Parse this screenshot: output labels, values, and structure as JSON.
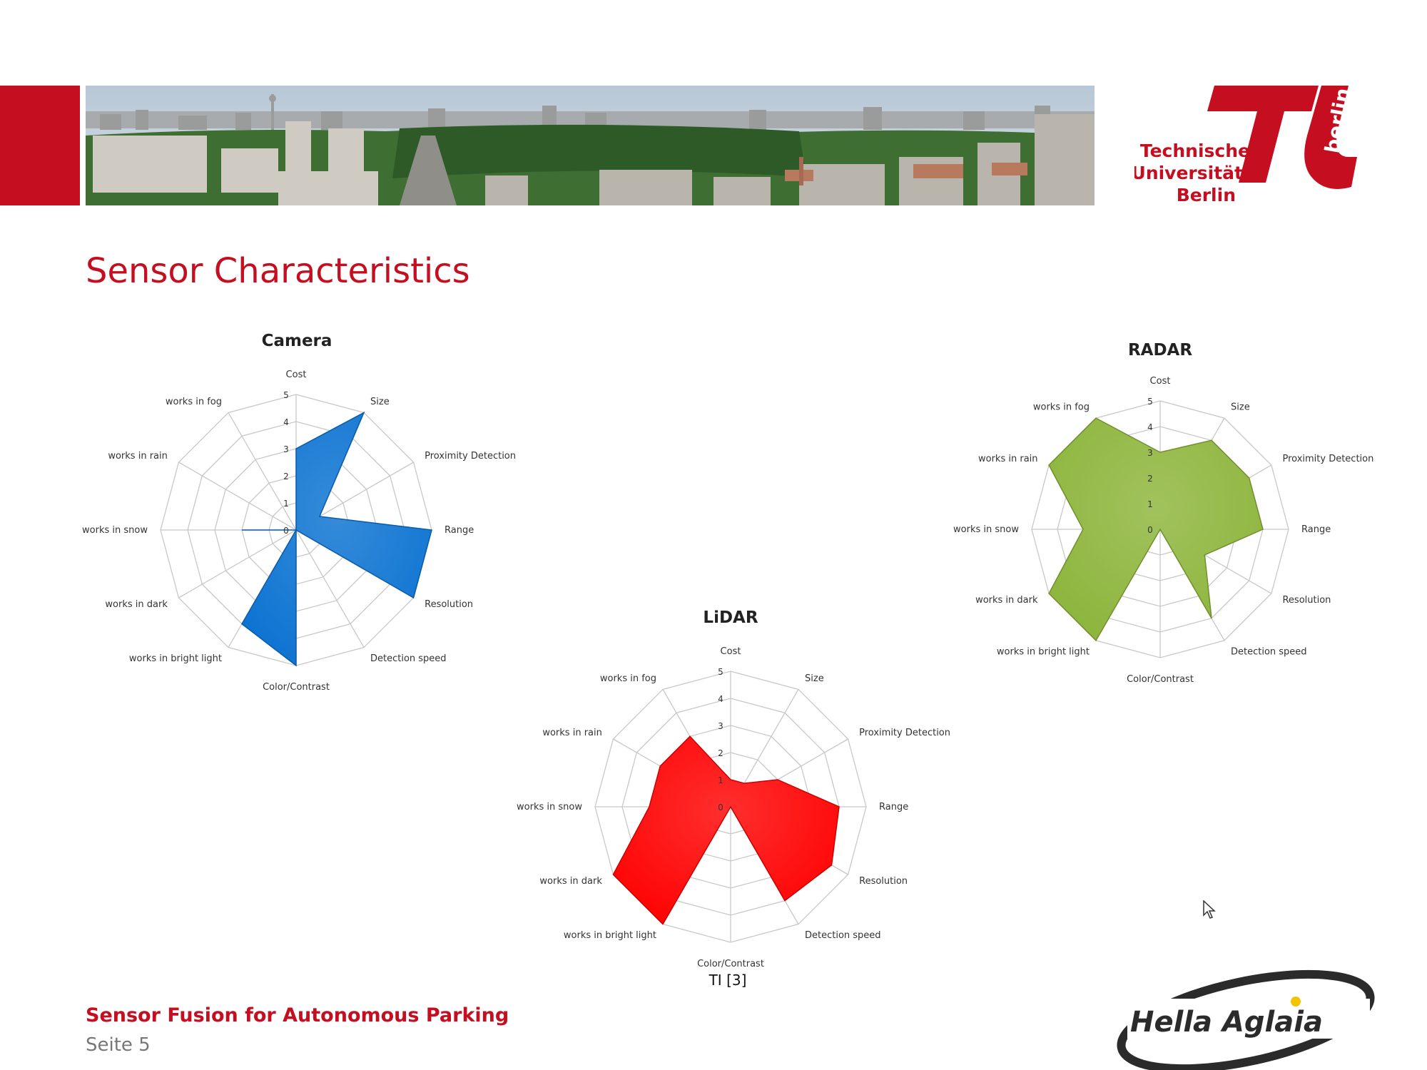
{
  "header": {
    "title": "Sensor Characteristics",
    "university": {
      "line1": "Technische",
      "line2": "Universität",
      "line3": "Berlin",
      "side": "berlin"
    },
    "brand_color": "#c50e1f"
  },
  "footer": {
    "title": "Sensor Fusion for Autonomous Parking",
    "page": "Seite 5",
    "source": "TI [3]",
    "partner_logo": "Hella Aglaia"
  },
  "chart_data": [
    {
      "type": "radar",
      "title": "Camera",
      "color": "#0a72d1",
      "categories": [
        "Cost",
        "Size",
        "Proximity Detection",
        "Range",
        "Resolution",
        "Detection speed",
        "Color/Contrast",
        "works in bright light",
        "works in dark",
        "works in snow",
        "works in rain",
        "works in fog"
      ],
      "values": [
        3,
        5,
        1,
        5,
        5,
        0,
        5,
        4,
        0,
        2,
        0,
        0
      ],
      "ticks": [
        "0",
        "1",
        "2",
        "3",
        "4",
        "5"
      ],
      "rmax": 5
    },
    {
      "type": "radar",
      "title": "LiDAR",
      "color": "#ff0000",
      "categories": [
        "Cost",
        "Size",
        "Proximity Detection",
        "Range",
        "Resolution",
        "Detection speed",
        "Color/Contrast",
        "works in bright light",
        "works in dark",
        "works in snow",
        "works in rain",
        "works in fog"
      ],
      "values": [
        1,
        1,
        2,
        4,
        4.3,
        4,
        0,
        5,
        5,
        3,
        3,
        3
      ],
      "ticks": [
        "0",
        "1",
        "2",
        "3",
        "4",
        "5"
      ],
      "rmax": 5
    },
    {
      "type": "radar",
      "title": "RADAR",
      "color": "#8cb43a",
      "categories": [
        "Cost",
        "Size",
        "Proximity Detection",
        "Range",
        "Resolution",
        "Detection speed",
        "Color/Contrast",
        "works in bright light",
        "works in dark",
        "works in snow",
        "works in rain",
        "works in fog"
      ],
      "values": [
        3,
        4,
        4,
        4,
        2,
        4,
        0,
        5,
        5,
        3,
        5,
        5
      ],
      "ticks": [
        "0",
        "1",
        "2",
        "3",
        "4",
        "5"
      ],
      "rmax": 5
    }
  ]
}
